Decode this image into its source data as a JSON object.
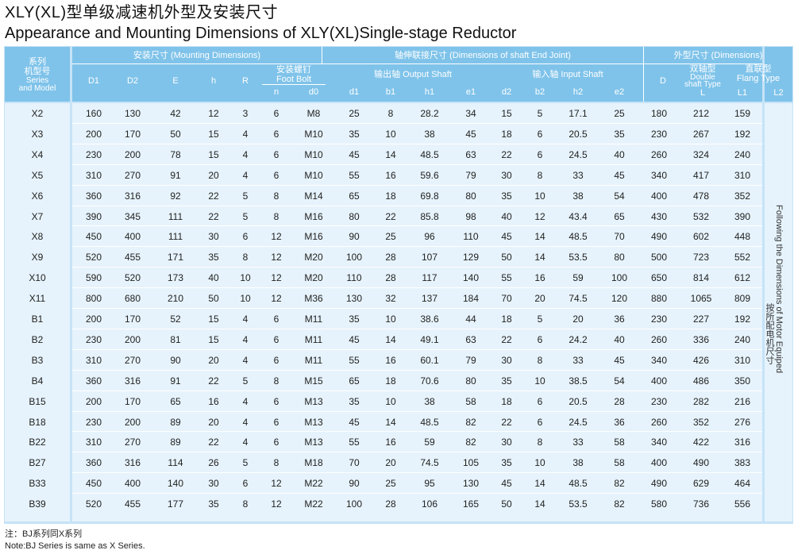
{
  "title": {
    "cn": "XLY(XL)型单级减速机外型及安装尺寸",
    "en": "Appearance and Mounting Dimensions of XLY(XL)Single-stage Reductor"
  },
  "header": {
    "model": {
      "cn1": "系列",
      "cn2": "机型号",
      "en1": "Series",
      "en2": "and Model"
    },
    "groups": {
      "mounting": "安装尺寸    (Mounting Dimensions)",
      "shaft": "轴伸联接尺寸    (Dimensions of shaft End Joint)",
      "dims": "外型尺寸    (Dimensions)"
    },
    "foot_bolt": {
      "cn": "安装螺钉",
      "en": "Foot Bolt"
    },
    "output_shaft": "输出轴  Output Shaft",
    "input_shaft": "输入轴  Input Shaft",
    "double_shaft": {
      "cn": "双轴型",
      "en1": "Double",
      "en2": "shaft Type"
    },
    "flang_type": {
      "cn": "直联型",
      "en": "Flang Type"
    },
    "cols": {
      "D1": "D1",
      "D2": "D2",
      "E": "E",
      "h": "h",
      "R": "R",
      "n": "n",
      "d0": "d0",
      "d1": "d1",
      "b1": "b1",
      "h1": "h1",
      "e1": "e1",
      "d2": "d2",
      "b2": "b2",
      "h2": "h2",
      "e2": "e2",
      "D": "D",
      "L": "L",
      "L1": "L1",
      "L2": "L2"
    }
  },
  "rows": [
    [
      "X2",
      "160",
      "130",
      "42",
      "12",
      "3",
      "6",
      "M8",
      "25",
      "8",
      "28.2",
      "34",
      "15",
      "5",
      "17.1",
      "25",
      "180",
      "212",
      "159"
    ],
    [
      "X3",
      "200",
      "170",
      "50",
      "15",
      "4",
      "6",
      "M10",
      "35",
      "10",
      "38",
      "45",
      "18",
      "6",
      "20.5",
      "35",
      "230",
      "267",
      "192"
    ],
    [
      "X4",
      "230",
      "200",
      "78",
      "15",
      "4",
      "6",
      "M10",
      "45",
      "14",
      "48.5",
      "63",
      "22",
      "6",
      "24.5",
      "40",
      "260",
      "324",
      "240"
    ],
    [
      "X5",
      "310",
      "270",
      "91",
      "20",
      "4",
      "6",
      "M10",
      "55",
      "16",
      "59.6",
      "79",
      "30",
      "8",
      "33",
      "45",
      "340",
      "417",
      "310"
    ],
    [
      "X6",
      "360",
      "316",
      "92",
      "22",
      "5",
      "8",
      "M14",
      "65",
      "18",
      "69.8",
      "80",
      "35",
      "10",
      "38",
      "54",
      "400",
      "478",
      "352"
    ],
    [
      "X7",
      "390",
      "345",
      "111",
      "22",
      "5",
      "8",
      "M16",
      "80",
      "22",
      "85.8",
      "98",
      "40",
      "12",
      "43.4",
      "65",
      "430",
      "532",
      "390"
    ],
    [
      "X8",
      "450",
      "400",
      "111",
      "30",
      "6",
      "12",
      "M16",
      "90",
      "25",
      "96",
      "110",
      "45",
      "14",
      "48.5",
      "70",
      "490",
      "602",
      "448"
    ],
    [
      "X9",
      "520",
      "455",
      "171",
      "35",
      "8",
      "12",
      "M20",
      "100",
      "28",
      "107",
      "129",
      "50",
      "14",
      "53.5",
      "80",
      "500",
      "723",
      "552"
    ],
    [
      "X10",
      "590",
      "520",
      "173",
      "40",
      "10",
      "12",
      "M20",
      "110",
      "28",
      "117",
      "140",
      "55",
      "16",
      "59",
      "100",
      "650",
      "814",
      "612"
    ],
    [
      "X11",
      "800",
      "680",
      "210",
      "50",
      "10",
      "12",
      "M36",
      "130",
      "32",
      "137",
      "184",
      "70",
      "20",
      "74.5",
      "120",
      "880",
      "1065",
      "809"
    ],
    [
      "B1",
      "200",
      "170",
      "52",
      "15",
      "4",
      "6",
      "M11",
      "35",
      "10",
      "38.6",
      "44",
      "18",
      "5",
      "20",
      "36",
      "230",
      "227",
      "192"
    ],
    [
      "B2",
      "230",
      "200",
      "81",
      "15",
      "4",
      "6",
      "M11",
      "45",
      "14",
      "49.1",
      "63",
      "22",
      "6",
      "24.2",
      "40",
      "260",
      "336",
      "240"
    ],
    [
      "B3",
      "310",
      "270",
      "90",
      "20",
      "4",
      "6",
      "M11",
      "55",
      "16",
      "60.1",
      "79",
      "30",
      "8",
      "33",
      "45",
      "340",
      "426",
      "310"
    ],
    [
      "B4",
      "360",
      "316",
      "91",
      "22",
      "5",
      "8",
      "M15",
      "65",
      "18",
      "70.6",
      "80",
      "35",
      "10",
      "38.5",
      "54",
      "400",
      "486",
      "350"
    ],
    [
      "B15",
      "200",
      "170",
      "65",
      "16",
      "4",
      "6",
      "M13",
      "35",
      "10",
      "38",
      "58",
      "18",
      "6",
      "20.5",
      "28",
      "230",
      "282",
      "216"
    ],
    [
      "B18",
      "230",
      "200",
      "89",
      "20",
      "4",
      "6",
      "M13",
      "45",
      "14",
      "48.5",
      "82",
      "22",
      "6",
      "24.5",
      "36",
      "260",
      "352",
      "276"
    ],
    [
      "B22",
      "310",
      "270",
      "89",
      "22",
      "4",
      "6",
      "M13",
      "55",
      "16",
      "59",
      "82",
      "30",
      "8",
      "33",
      "58",
      "340",
      "422",
      "316"
    ],
    [
      "B27",
      "360",
      "316",
      "114",
      "26",
      "5",
      "8",
      "M18",
      "70",
      "20",
      "74.5",
      "105",
      "35",
      "10",
      "38",
      "58",
      "400",
      "490",
      "383"
    ],
    [
      "B33",
      "450",
      "400",
      "140",
      "30",
      "6",
      "12",
      "M22",
      "90",
      "25",
      "95",
      "130",
      "45",
      "14",
      "48.5",
      "82",
      "490",
      "629",
      "464"
    ],
    [
      "B39",
      "520",
      "455",
      "177",
      "35",
      "8",
      "12",
      "M22",
      "100",
      "28",
      "106",
      "165",
      "50",
      "14",
      "53.5",
      "82",
      "580",
      "736",
      "556"
    ]
  ],
  "side_note": {
    "en": "Following the Dimensions of Motor Equiped",
    "cn": "按所配电机尺寸"
  },
  "note": {
    "cn": "注：BJ系列同X系列",
    "en": "Note:BJ Series is same as X Series."
  }
}
